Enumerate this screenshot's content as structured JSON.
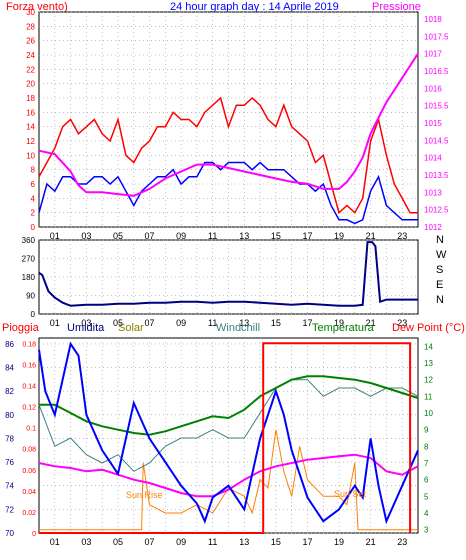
{
  "header": {
    "left_label": "Forza vento)",
    "title": "24 hour graph day : 14 Aprile 2019",
    "right_label": "Pressione"
  },
  "colors": {
    "red": "#ff0000",
    "blue": "#0000ff",
    "magenta": "#ff00ff",
    "dark_navy": "#000080",
    "green": "#008000",
    "teal": "#408080",
    "orange": "#ff8000",
    "dark_red_box": "#cc0000",
    "grid": "#999999",
    "background": "#ffffff"
  },
  "x_ticks": [
    "01",
    "03",
    "05",
    "07",
    "09",
    "11",
    "13",
    "15",
    "17",
    "19",
    "21",
    "23"
  ],
  "panels": {
    "wind": {
      "left_ticks": [
        "0",
        "2",
        "4",
        "6",
        "8",
        "10",
        "12",
        "14",
        "16",
        "18",
        "20",
        "22",
        "24",
        "26",
        "28",
        "30"
      ],
      "right_ticks": [
        "1018",
        "1017.5",
        "1017",
        "1016.5",
        "1016",
        "1015.5",
        "1015",
        "1014.5",
        "1014",
        "1013.5",
        "1013",
        "1012.5",
        "1012"
      ]
    },
    "direction": {
      "left_ticks": [
        "0",
        "90",
        "180",
        "270",
        "360"
      ],
      "compass": [
        "N",
        "W",
        "S",
        "E",
        "N"
      ]
    },
    "lower": {
      "headers": {
        "rain": "Pioggia",
        "humidity": "Umidita",
        "solar": "Solar",
        "windchill": "Windchill",
        "temperature": "Temperatura",
        "dewpoint": "Dew Point (°C)"
      },
      "humidity_ticks": [
        "70",
        "72",
        "74",
        "76",
        "78",
        "80",
        "82",
        "84",
        "86"
      ],
      "rain_ticks": [
        "0",
        "0.02",
        "0.04",
        "0.06",
        "0.08",
        "0.1",
        "0.12",
        "0.14",
        "0.16",
        "0.18"
      ],
      "temp_ticks": [
        "3",
        "4",
        "5",
        "6",
        "7",
        "8",
        "9",
        "10",
        "11",
        "12",
        "13",
        "14"
      ],
      "annotations": {
        "sunrise": "Sun Rise",
        "sunset": "Sun Set"
      }
    }
  },
  "chart_data": [
    {
      "type": "line",
      "title": "24 hour graph day : 14 Aprile 2019",
      "x_unit": "hour",
      "xlim": [
        0,
        24
      ],
      "ylim_left": [
        0,
        30
      ],
      "ylim_right": [
        1012,
        1018.2
      ],
      "series": [
        {
          "name": "Forza vento)",
          "color": "#ff0000",
          "axis": "left",
          "x": [
            0,
            0.5,
            1,
            1.5,
            2,
            2.5,
            3,
            3.5,
            4,
            4.5,
            5,
            5.5,
            6,
            6.5,
            7,
            7.5,
            8,
            8.5,
            9,
            9.5,
            10,
            10.5,
            11,
            11.5,
            12,
            12.5,
            13,
            13.5,
            14,
            14.5,
            15,
            15.5,
            16,
            16.5,
            17,
            17.5,
            18,
            18.5,
            19,
            19.5,
            20,
            20.5,
            21,
            21.5,
            22,
            22.5,
            23,
            23.5,
            24
          ],
          "y": [
            7,
            9,
            11,
            14,
            15,
            13,
            14,
            15,
            13,
            12,
            15,
            10,
            9,
            11,
            12,
            14,
            14,
            16,
            15,
            15,
            14,
            16,
            17,
            18,
            14,
            17,
            17,
            18,
            17,
            15,
            14,
            17,
            14,
            13,
            12,
            9,
            10,
            6,
            2,
            3,
            2,
            4,
            12,
            15,
            10,
            6,
            4,
            2,
            2
          ]
        },
        {
          "name": "",
          "color": "#0000ff",
          "axis": "left",
          "x": [
            0,
            0.5,
            1,
            1.5,
            2,
            2.5,
            3,
            3.5,
            4,
            4.5,
            5,
            5.5,
            6,
            6.5,
            7,
            7.5,
            8,
            8.5,
            9,
            9.5,
            10,
            10.5,
            11,
            11.5,
            12,
            12.5,
            13,
            13.5,
            14,
            14.5,
            15,
            15.5,
            16,
            16.5,
            17,
            17.5,
            18,
            18.5,
            19,
            19.5,
            20,
            20.5,
            21,
            21.5,
            22,
            22.5,
            23,
            23.5,
            24
          ],
          "y": [
            2,
            6,
            5,
            7,
            7,
            6,
            6,
            7,
            7,
            6,
            7,
            5,
            3,
            5,
            6,
            7,
            7,
            8,
            6,
            7,
            7,
            9,
            9,
            8,
            9,
            9,
            9,
            8,
            9,
            8,
            8,
            8,
            7,
            6,
            6,
            5,
            6,
            3,
            1,
            1,
            0.5,
            1,
            5,
            7,
            3,
            2,
            1,
            1,
            1
          ]
        },
        {
          "name": "Pressione",
          "color": "#ff00ff",
          "axis": "right",
          "x": [
            0,
            1,
            2,
            2.5,
            3,
            4,
            5,
            6,
            7,
            8,
            9,
            10,
            11,
            12,
            13,
            14,
            15,
            16,
            17,
            18,
            19,
            19.5,
            20,
            20.5,
            21,
            22,
            23,
            24
          ],
          "y": [
            1014.2,
            1014.1,
            1013.6,
            1013.2,
            1013.0,
            1013.0,
            1012.95,
            1012.9,
            1013.1,
            1013.4,
            1013.6,
            1013.8,
            1013.8,
            1013.7,
            1013.6,
            1013.5,
            1013.4,
            1013.3,
            1013.25,
            1013.1,
            1013.1,
            1013.3,
            1013.6,
            1014.0,
            1014.7,
            1015.6,
            1016.3,
            1017.0
          ]
        }
      ]
    },
    {
      "type": "line",
      "title": "",
      "xlim": [
        0,
        24
      ],
      "ylim": [
        0,
        360
      ],
      "series": [
        {
          "name": "",
          "color": "#000080",
          "x": [
            0,
            0.2,
            0.6,
            1,
            1.5,
            2,
            3,
            4,
            5,
            6,
            7,
            8,
            9,
            10,
            11,
            12,
            13,
            14,
            15,
            16,
            17,
            18,
            19,
            20,
            20.5,
            20.8,
            21.1,
            21.3,
            21.6,
            22,
            23,
            24
          ],
          "y": [
            200,
            190,
            110,
            80,
            55,
            40,
            45,
            45,
            50,
            50,
            55,
            55,
            60,
            60,
            55,
            60,
            60,
            55,
            50,
            45,
            50,
            45,
            40,
            40,
            45,
            350,
            350,
            330,
            60,
            70,
            70,
            70
          ]
        }
      ]
    },
    {
      "type": "line",
      "title": "",
      "xlim": [
        0,
        24
      ],
      "ylim_humidity": [
        70,
        86.5
      ],
      "ylim_rain": [
        0,
        0.185
      ],
      "ylim_temperature": [
        2.8,
        14.5
      ],
      "series": [
        {
          "name": "Pioggia",
          "color": "#ff0000",
          "axis": "rain",
          "x": [
            0,
            14.2,
            14.2,
            23.5,
            23.5
          ],
          "y": [
            0,
            0,
            0.18,
            0.18,
            0
          ]
        },
        {
          "name": "Umidita",
          "color": "#0000ff",
          "axis": "humidity",
          "x": [
            0,
            0.4,
            1,
            2,
            2.5,
            3,
            4,
            5,
            6,
            7,
            8,
            9,
            10,
            10.5,
            11,
            12,
            13,
            14,
            15,
            15.5,
            16,
            16.5,
            17,
            17.5,
            18,
            19,
            20,
            20.5,
            21,
            21.5,
            22,
            23,
            24
          ],
          "y": [
            85.5,
            82,
            80,
            86,
            85,
            80,
            77,
            75,
            81,
            78,
            76,
            74,
            72.5,
            71,
            73,
            74,
            72,
            78,
            82,
            80,
            77,
            75,
            73,
            72,
            71,
            72,
            74,
            73,
            78,
            74,
            71,
            74,
            77
          ]
        },
        {
          "name": "Solar",
          "color": "#ff8000",
          "axis": "temperature",
          "x": [
            0,
            6.5,
            6.6,
            7,
            8,
            9,
            10,
            11,
            12,
            13,
            13.5,
            14,
            14.5,
            15,
            15.5,
            16,
            16.5,
            17,
            18,
            19,
            19.5,
            20,
            20.2,
            21,
            24
          ],
          "y": [
            3,
            3,
            7,
            4.5,
            4,
            4,
            4.5,
            4,
            5.5,
            5,
            4,
            6,
            5.5,
            9,
            6.5,
            5,
            8,
            6,
            5,
            5,
            4.5,
            7,
            3,
            3,
            3
          ]
        },
        {
          "name": "Windchill",
          "color": "#408080",
          "axis": "temperature",
          "x": [
            0,
            1,
            2,
            3,
            4,
            5,
            6,
            7,
            8,
            9,
            10,
            11,
            12,
            13,
            14,
            15,
            16,
            17,
            18,
            19,
            20,
            21,
            22,
            23,
            24
          ],
          "y": [
            10.5,
            8,
            8.5,
            7.5,
            7,
            7.5,
            6.5,
            7,
            8,
            8.5,
            8.5,
            9,
            8.5,
            8.5,
            10,
            11.5,
            12,
            12,
            11,
            11.5,
            11.5,
            11,
            11.5,
            11.5,
            11
          ]
        },
        {
          "name": "Temperatura",
          "color": "#008000",
          "axis": "temperature",
          "x": [
            0,
            1,
            2,
            3,
            4,
            5,
            6,
            7,
            8,
            9,
            10,
            11,
            12,
            13,
            14,
            15,
            16,
            17,
            18,
            19,
            20,
            21,
            22,
            23,
            24
          ],
          "y": [
            10.5,
            10.5,
            10,
            9.5,
            9.2,
            9,
            8.8,
            8.7,
            8.9,
            9.2,
            9.5,
            9.8,
            9.7,
            10.2,
            11,
            11.5,
            12,
            12.2,
            12.2,
            12.1,
            12,
            11.8,
            11.5,
            11.2,
            10.9
          ]
        },
        {
          "name": "Dew Point (°C)",
          "color": "#ff00ff",
          "axis": "temperature",
          "x": [
            0,
            1,
            2,
            3,
            4,
            5,
            6,
            7,
            8,
            9,
            10,
            11,
            12,
            13,
            14,
            15,
            16,
            17,
            18,
            19,
            20,
            21,
            22,
            23,
            24
          ],
          "y": [
            7,
            6.8,
            6.7,
            6.5,
            6.6,
            6.3,
            6,
            5.8,
            5.5,
            5.2,
            5,
            5,
            5.4,
            6,
            6.5,
            6.8,
            7,
            7.2,
            7.3,
            7.4,
            7.5,
            7.3,
            6.5,
            6.3,
            6.8
          ]
        }
      ],
      "annotations": [
        "Sun Rise",
        "Sun Set"
      ]
    }
  ]
}
